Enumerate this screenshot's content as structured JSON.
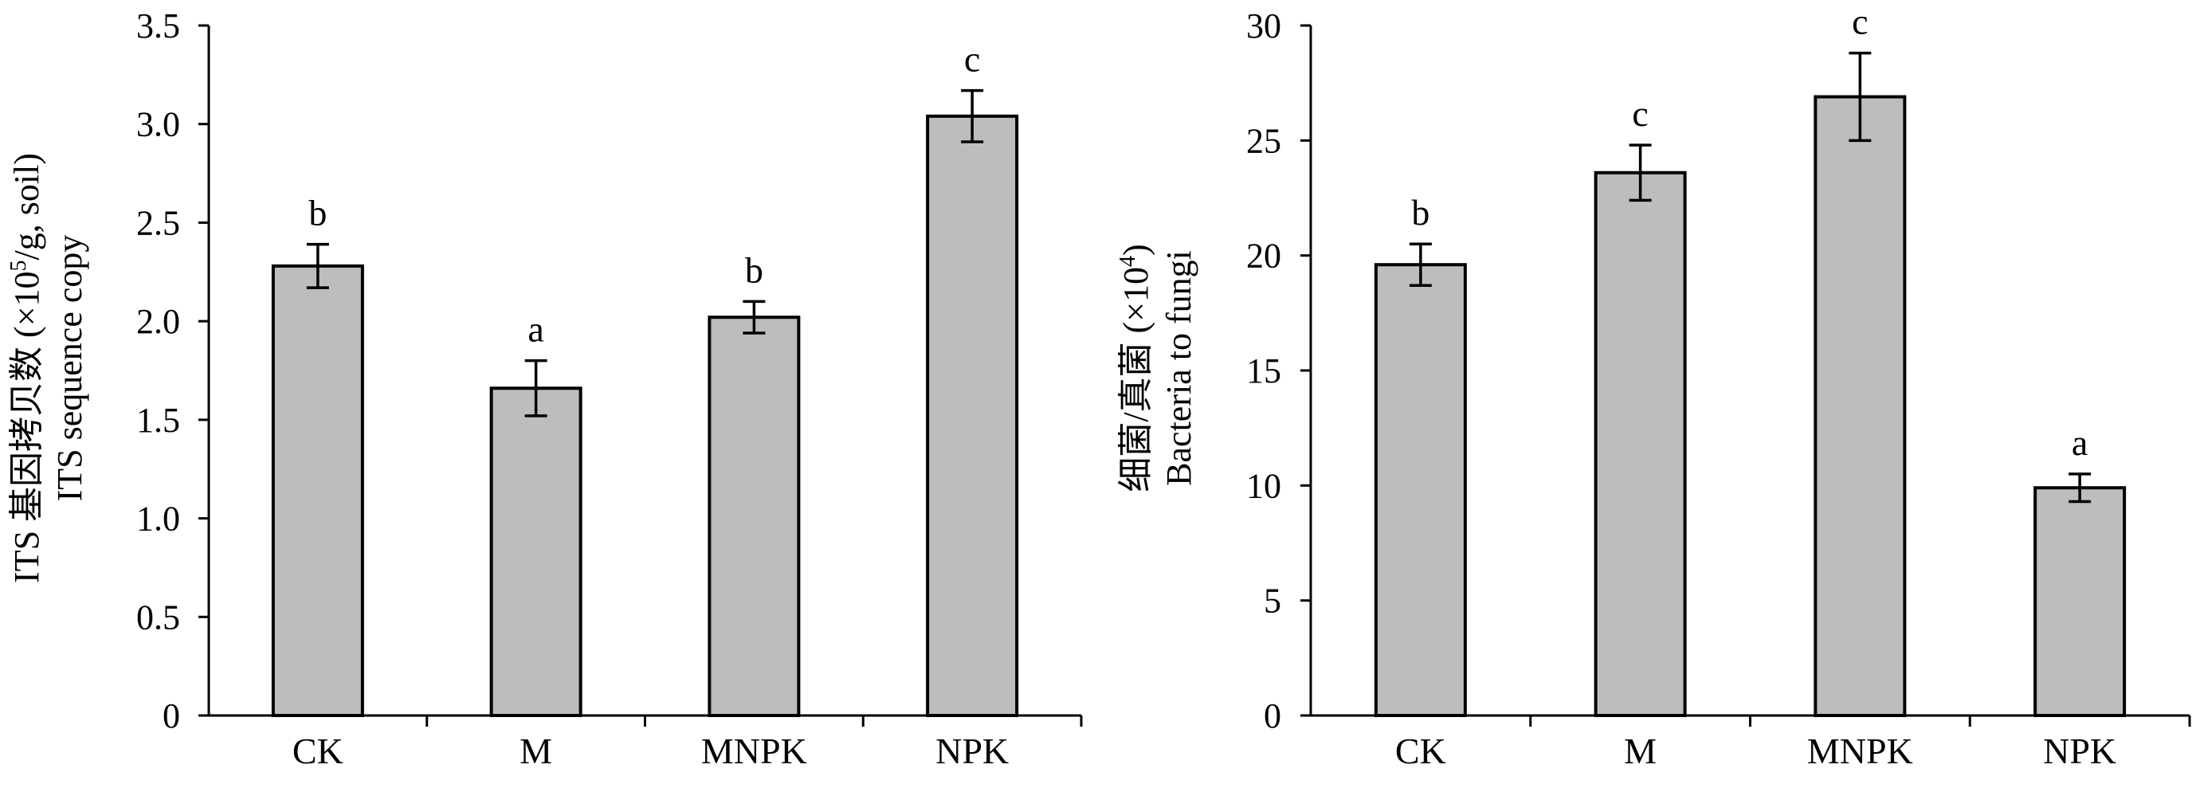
{
  "chart_data": [
    {
      "type": "bar",
      "categories": [
        "CK",
        "M",
        "MNPK",
        "NPK"
      ],
      "values": [
        2.28,
        1.66,
        2.02,
        3.04
      ],
      "errors": [
        0.11,
        0.14,
        0.08,
        0.13
      ],
      "significance": [
        "b",
        "a",
        "b",
        "c"
      ],
      "ylim": [
        0,
        3.5
      ],
      "yticks": [
        "0",
        "0.5",
        "1.0",
        "1.5",
        "2.0",
        "2.5",
        "3.0",
        "3.5"
      ],
      "ylabel_line1_pre": "ITS 基因拷贝数 (×10",
      "ylabel_line1_sup": "5",
      "ylabel_line1_post": "/g, soil)",
      "ylabel_line2": "ITS sequence copy",
      "bar_color": "#bdbdbd"
    },
    {
      "type": "bar",
      "categories": [
        "CK",
        "M",
        "MNPK",
        "NPK"
      ],
      "values": [
        19.6,
        23.6,
        26.9,
        9.9
      ],
      "errors": [
        0.9,
        1.2,
        1.9,
        0.6
      ],
      "significance": [
        "b",
        "c",
        "c",
        "a"
      ],
      "ylim": [
        0,
        30
      ],
      "yticks": [
        "0",
        "5",
        "10",
        "15",
        "20",
        "25",
        "30"
      ],
      "ylabel_line1_pre": "细菌/真菌 (×10",
      "ylabel_line1_sup": "4",
      "ylabel_line1_post": ")",
      "ylabel_line2": "Bacteria to fungi",
      "bar_color": "#bdbdbd"
    }
  ]
}
